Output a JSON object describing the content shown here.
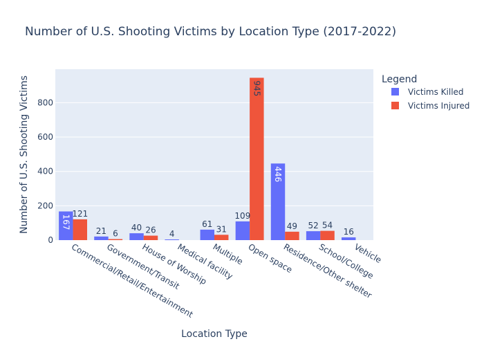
{
  "chart_data": {
    "type": "bar",
    "title": "Number of U.S. Shooting Victims by Location Type (2017-2022)",
    "xlabel": "Location Type",
    "ylabel": "Number of U.S. Shooting Victims",
    "categories": [
      "Commercial/Retail/Entertainment",
      "Government/Transit",
      "House of Worship",
      "Medical facility",
      "Multiple",
      "Open space",
      "Residence/Other shelter",
      "School/College",
      "Vehicle"
    ],
    "series": [
      {
        "name": "Victims Killed",
        "color": "#636efa",
        "values": [
          167,
          21,
          40,
          4,
          61,
          109,
          446,
          52,
          16
        ]
      },
      {
        "name": "Victims Injured",
        "color": "#ef553b",
        "values": [
          121,
          6,
          26,
          0,
          31,
          945,
          49,
          54,
          0
        ]
      }
    ],
    "ylim": [
      0,
      995
    ],
    "yticks": [
      0,
      200,
      400,
      600,
      800
    ],
    "legend": {
      "title": "Legend",
      "placement": "right"
    },
    "plot_bg": "#e5ecf6",
    "grid": true
  }
}
